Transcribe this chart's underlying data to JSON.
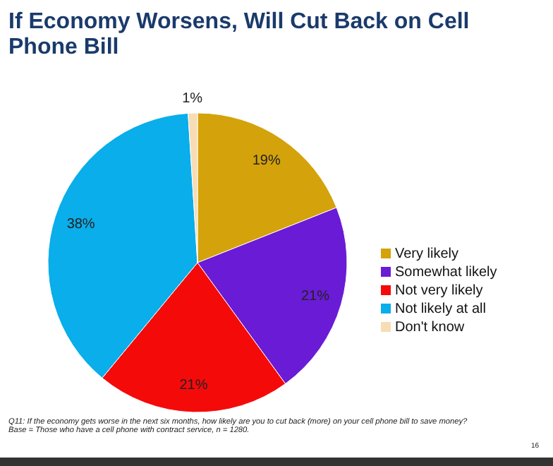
{
  "chart_data": {
    "type": "pie",
    "title": "If Economy Worsens, Will Cut Back on Cell Phone Bill",
    "categories": [
      "Very likely",
      "Somewhat likely",
      "Not very likely",
      "Not likely at all",
      "Don't know"
    ],
    "values": [
      19,
      21,
      21,
      38,
      1
    ],
    "colors": [
      "#d4a20a",
      "#6a1bd6",
      "#f50a0a",
      "#09aeea",
      "#f8dcb4"
    ],
    "value_labels": [
      "19%",
      "21%",
      "21%",
      "38%",
      "1%"
    ],
    "legend": "right",
    "annotations": [
      "Q11: If the economy gets worse in the next six months, how likely are you to cut back (more) on your cell phone bill to save money?",
      "Base = Those who have a cell phone with contract service, n = 1280.",
      "16"
    ]
  }
}
